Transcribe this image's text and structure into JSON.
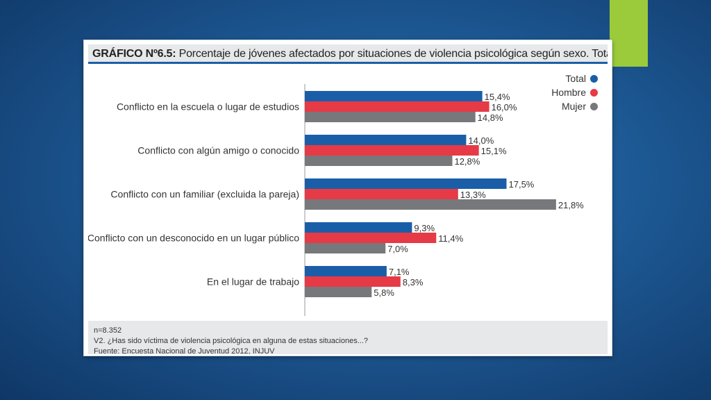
{
  "colors": {
    "total": "#1b5ea8",
    "hombre": "#e63a46",
    "mujer": "#77787b",
    "accent": "#9bcb3b"
  },
  "title": {
    "prefix": "GRÁFICO Nº6.5:",
    "text": " Porcentaje de jóvenes afectados por situaciones de violencia psicológica según sexo. Total Muestra."
  },
  "footer": {
    "n": "n=8.352",
    "question": "V2. ¿Has sido víctima de violencia psicológica en alguna de estas situaciones...?",
    "source": "Fuente: Encuesta Nacional de Juventud 2012, INJUV"
  },
  "chart_data": {
    "type": "bar",
    "orientation": "horizontal",
    "categories": [
      "Conflicto en la escuela o lugar de  estudios",
      "Conflicto con algún amigo o conocido",
      "Conflicto con un familiar (excluida la pareja)",
      "Conflicto con un desconocido en un lugar público",
      "En el lugar de trabajo"
    ],
    "series": [
      {
        "name": "Total",
        "color": "#1b5ea8",
        "values": [
          15.4,
          14.0,
          17.5,
          9.3,
          7.1
        ],
        "labels": [
          "15,4%",
          "14,0%",
          "17,5%",
          "9,3%",
          "7,1%"
        ]
      },
      {
        "name": "Hombre",
        "color": "#e63a46",
        "values": [
          16.0,
          15.1,
          13.3,
          11.4,
          8.3
        ],
        "labels": [
          "16,0%",
          "15,1%",
          "13,3%",
          "11,4%",
          "8,3%"
        ]
      },
      {
        "name": "Mujer",
        "color": "#77787b",
        "values": [
          14.8,
          12.8,
          21.8,
          7.0,
          5.8
        ],
        "labels": [
          "14,8%",
          "12,8%",
          "21,8%",
          "7,0%",
          "5,8%"
        ]
      }
    ],
    "xlim": [
      0,
      25
    ],
    "legend_position": "top-right",
    "grid": false
  }
}
